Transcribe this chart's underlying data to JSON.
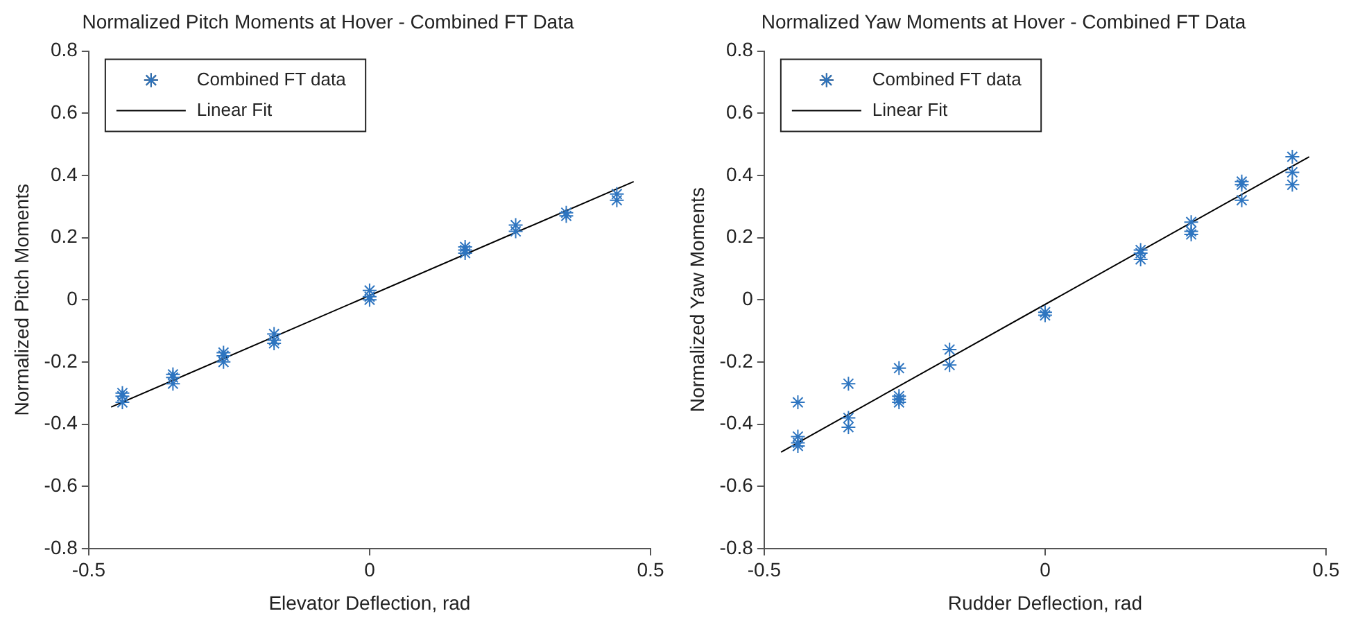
{
  "chart_data": [
    {
      "type": "scatter",
      "title": "Normalized Pitch Moments at Hover - Combined FT Data",
      "xlabel": "Elevator Deflection, rad",
      "ylabel": "Normalized Pitch Moments",
      "xlim": [
        -0.5,
        0.5
      ],
      "xticks": [
        -0.5,
        0,
        0.5
      ],
      "ylim": [
        -0.8,
        0.8
      ],
      "yticks": [
        -0.8,
        -0.6,
        -0.4,
        -0.2,
        0,
        0.2,
        0.4,
        0.6,
        0.8
      ],
      "grid": false,
      "legend": "top left",
      "series": [
        {
          "name": "Combined FT data",
          "type": "scatter",
          "marker": "cross",
          "color": "#2e75c0",
          "x": [
            -0.44,
            -0.44,
            -0.44,
            -0.35,
            -0.35,
            -0.35,
            -0.26,
            -0.26,
            -0.26,
            -0.17,
            -0.17,
            -0.17,
            0,
            0,
            0,
            0.17,
            0.17,
            0.17,
            0.26,
            0.26,
            0.35,
            0.35,
            0.44,
            0.44
          ],
          "values": [
            -0.3,
            -0.31,
            -0.33,
            -0.24,
            -0.25,
            -0.27,
            -0.17,
            -0.18,
            -0.2,
            -0.11,
            -0.13,
            -0.14,
            0.03,
            0.01,
            0.0,
            0.17,
            0.16,
            0.15,
            0.24,
            0.22,
            0.28,
            0.27,
            0.34,
            0.32
          ]
        },
        {
          "name": "Linear Fit",
          "type": "line",
          "marker": "none",
          "color": "#000000",
          "line_style": "solid",
          "x": [
            -0.46,
            0.47
          ],
          "values": [
            -0.345,
            0.38
          ]
        }
      ]
    },
    {
      "type": "scatter",
      "title": "Normalized Yaw Moments at Hover - Combined FT Data",
      "xlabel": "Rudder Deflection, rad",
      "ylabel": "Normalized Yaw Moments",
      "xlim": [
        -0.5,
        0.5
      ],
      "xticks": [
        -0.5,
        0,
        0.5
      ],
      "ylim": [
        -0.8,
        0.8
      ],
      "yticks": [
        -0.8,
        -0.6,
        -0.4,
        -0.2,
        0,
        0.2,
        0.4,
        0.6,
        0.8
      ],
      "grid": false,
      "legend": "top left",
      "series": [
        {
          "name": "Combined FT data",
          "type": "scatter",
          "marker": "cross",
          "color": "#2e75c0",
          "x": [
            -0.44,
            -0.44,
            -0.44,
            -0.44,
            -0.35,
            -0.35,
            -0.35,
            -0.26,
            -0.26,
            -0.26,
            -0.26,
            -0.17,
            -0.17,
            0,
            0,
            0.17,
            0.17,
            0.17,
            0.26,
            0.26,
            0.26,
            0.35,
            0.35,
            0.35,
            0.44,
            0.44,
            0.44
          ],
          "values": [
            -0.33,
            -0.44,
            -0.46,
            -0.47,
            -0.27,
            -0.38,
            -0.41,
            -0.22,
            -0.31,
            -0.32,
            -0.33,
            -0.16,
            -0.21,
            -0.04,
            -0.05,
            0.16,
            0.15,
            0.13,
            0.25,
            0.22,
            0.21,
            0.38,
            0.37,
            0.32,
            0.46,
            0.41,
            0.37
          ]
        },
        {
          "name": "Linear Fit",
          "type": "line",
          "marker": "none",
          "color": "#000000",
          "line_style": "solid",
          "x": [
            -0.47,
            0.47
          ],
          "values": [
            -0.49,
            0.46
          ]
        }
      ]
    }
  ]
}
